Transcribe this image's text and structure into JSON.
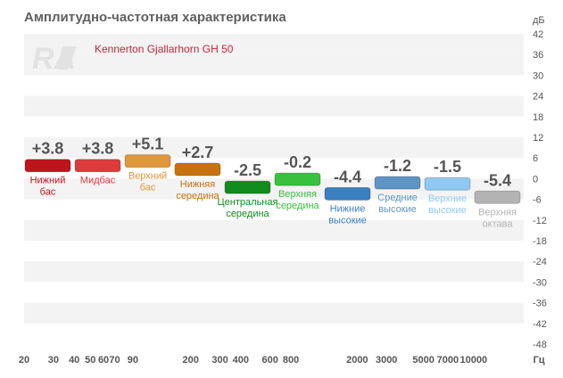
{
  "title": "Амплитудно-частотная характеристика",
  "chart_data": {
    "type": "bar",
    "title": "Амплитудно-частотная характеристика",
    "legend": "Kennerton Gjallarhorn GH 50",
    "y_unit": "дБ",
    "x_unit": "Гц",
    "ylim": [
      -48,
      42
    ],
    "y_ticks": [
      42,
      36,
      30,
      24,
      18,
      12,
      6,
      0,
      -6,
      -12,
      -18,
      -24,
      -30,
      -36,
      -42,
      -48
    ],
    "x_ticks": [
      "20",
      "30",
      "40",
      "50",
      "60",
      "70",
      "90",
      "200",
      "300",
      "400",
      "600",
      "800",
      "2000",
      "3000",
      "5000",
      "7000",
      "10000"
    ],
    "bands": [
      {
        "label": "Нижний бас",
        "value_text": "+3.8",
        "value": 3.8,
        "color": "#c0141c"
      },
      {
        "label": "Мидбас",
        "value_text": "+3.8",
        "value": 3.8,
        "color": "#dd3b3b"
      },
      {
        "label": "Верхний бас",
        "value_text": "+5.1",
        "value": 5.1,
        "color": "#e0963a"
      },
      {
        "label": "Нижняя середина",
        "value_text": "+2.7",
        "value": 2.7,
        "color": "#c7720f"
      },
      {
        "label": "Центральная середина",
        "value_text": "-2.5",
        "value": -2.5,
        "color": "#118a1e"
      },
      {
        "label": "Верхняя середина",
        "value_text": "-0.2",
        "value": -0.2,
        "color": "#39c03f"
      },
      {
        "label": "Нижние высокие",
        "value_text": "-4.4",
        "value": -4.4,
        "color": "#3a7fc0"
      },
      {
        "label": "Средние высокие",
        "value_text": "-1.2",
        "value": -1.2,
        "color": "#5e95c4"
      },
      {
        "label": "Верхние высокие",
        "value_text": "-1.5",
        "value": -1.5,
        "color": "#8fc9f2"
      },
      {
        "label": "Верхняя октава",
        "value_text": "-5.4",
        "value": -5.4,
        "color": "#b3b3b3"
      }
    ]
  }
}
